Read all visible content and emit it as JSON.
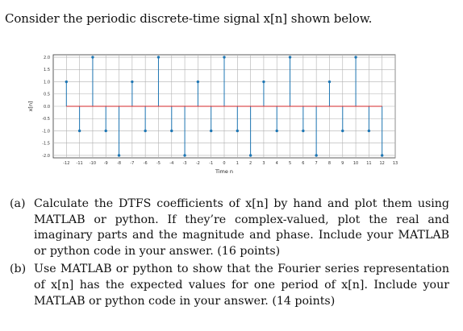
{
  "intro": {
    "text": "Consider the periodic discrete-time signal x[n] shown below."
  },
  "chart_data": {
    "type": "stem",
    "xlabel": "Time n",
    "ylabel": "x[n]",
    "xlim": [
      -13,
      13
    ],
    "ylim": [
      -2.1,
      2.1
    ],
    "x_ticks": [
      -12,
      -11,
      -10,
      -9,
      -8,
      -7,
      -6,
      -5,
      -4,
      -3,
      -2,
      -1,
      0,
      1,
      2,
      3,
      4,
      5,
      6,
      7,
      8,
      9,
      10,
      11,
      12,
      13
    ],
    "x_tick_labels": [
      "-12",
      "-11",
      "-10",
      "-9",
      "-8",
      "-7",
      "-6",
      "-5",
      "-4",
      "-3",
      "-2",
      "-1",
      "0",
      "1",
      "2",
      "3",
      "4",
      "5",
      "6",
      "7",
      "8",
      "9",
      "10",
      "11",
      "12",
      "13"
    ],
    "y_ticks": [
      2.0,
      1.5,
      1.0,
      0.5,
      0.0,
      -0.5,
      -1.0,
      -1.5,
      -2.0
    ],
    "y_tick_labels": [
      "2.0",
      "1.5",
      "1.0",
      "0.5",
      "0.0",
      "-0.5",
      "-1.0",
      "-1.5",
      "-2.0"
    ],
    "grid": true,
    "x": [
      -12,
      -11,
      -10,
      -9,
      -8,
      -7,
      -6,
      -5,
      -4,
      -3,
      -2,
      -1,
      0,
      1,
      2,
      3,
      4,
      5,
      6,
      7,
      8,
      9,
      10,
      11,
      12
    ],
    "y": [
      1,
      -1,
      2,
      -1,
      -2,
      1,
      -1,
      2,
      -1,
      -2,
      1,
      -1,
      2,
      -1,
      -2,
      1,
      -1,
      2,
      -1,
      -2,
      1,
      -1,
      2,
      -1,
      -2
    ],
    "colors": {
      "stem": "#1f77b4",
      "baseline": "#d62728",
      "grid": "#b0b0b0"
    }
  },
  "parts": [
    {
      "label": "(a)",
      "text": "Calculate the DTFS coefficients of x[n] by hand and plot them using MATLAB or python. If they’re complex-valued, plot the real and imaginary parts and the magnitude and phase. Include your MATLAB or python code in your answer. (16 points)"
    },
    {
      "label": "(b)",
      "text": "Use MATLAB or python to show that the Fourier series representation of x[n] has the expected values for one period of x[n]. Include your MATLAB or python code in your answer. (14 points)"
    }
  ]
}
